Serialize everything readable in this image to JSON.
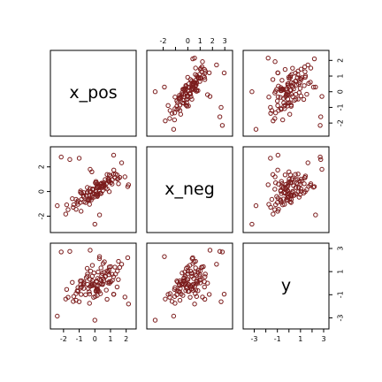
{
  "chart_data": {
    "type": "scatter",
    "title": "",
    "variables": [
      "x_pos",
      "x_neg",
      "y"
    ],
    "marker": {
      "shape": "open-circle",
      "color": "#7b1c1c"
    },
    "grid": false,
    "axis_ticks": {
      "x_pos": {
        "range": [
          -2.5,
          2.3
        ],
        "ticks": [
          -2,
          -1,
          0,
          1,
          2
        ],
        "labels": [
          "-2",
          "-1",
          "0",
          "1",
          "2"
        ]
      },
      "x_neg": {
        "range": [
          -2.9,
          3.2
        ],
        "ticks": [
          -2,
          0,
          2
        ],
        "labels": [
          "-2",
          "0",
          "2"
        ],
        "top_ticks": [
          -2,
          -1,
          0,
          1,
          2,
          3
        ],
        "top_labels": [
          "-2",
          "",
          "0",
          "1",
          "2",
          "3"
        ]
      },
      "y": {
        "range": [
          -3.5,
          3.0
        ],
        "ticks": [
          -2,
          -1,
          0,
          1,
          2
        ],
        "labels": [
          "-2",
          "-1",
          "0",
          "1",
          "2"
        ],
        "side_ticks": [
          -3,
          -1,
          1,
          3
        ],
        "side_labels": [
          "-3",
          "-1",
          "1",
          "3"
        ],
        "bottom_ticks": [
          -3,
          -2,
          -1,
          0,
          1,
          2,
          3
        ],
        "bottom_labels": [
          "-3",
          "",
          "-1",
          "",
          "1",
          "",
          "3"
        ]
      }
    },
    "points": [
      {
        "x_pos": -0.92,
        "x_neg": -0.07,
        "y": -0.43
      },
      {
        "x_pos": -0.34,
        "x_neg": -1.04,
        "y": -1.74
      },
      {
        "x_pos": 1.92,
        "x_neg": 1.19,
        "y": -1.2
      },
      {
        "x_pos": -0.91,
        "x_neg": 0.05,
        "y": -0.13
      },
      {
        "x_pos": -0.48,
        "x_neg": 0.33,
        "y": 0.6
      },
      {
        "x_pos": 0.21,
        "x_neg": -0.24,
        "y": 0.97
      },
      {
        "x_pos": 0.03,
        "x_neg": 0.71,
        "y": -1.15
      },
      {
        "x_pos": 0.92,
        "x_neg": 1.35,
        "y": 0.13
      },
      {
        "x_pos": -0.19,
        "x_neg": 1.6,
        "y": 0.0
      },
      {
        "x_pos": -0.85,
        "x_neg": -0.64,
        "y": 0.2
      },
      {
        "x_pos": -0.23,
        "x_neg": -0.68,
        "y": -0.22
      },
      {
        "x_pos": 0.18,
        "x_neg": 0.43,
        "y": -0.61
      },
      {
        "x_pos": 1.42,
        "x_neg": 1.35,
        "y": -0.33
      },
      {
        "x_pos": 0.53,
        "x_neg": 0.41,
        "y": 1.7
      },
      {
        "x_pos": -1.38,
        "x_neg": -1.28,
        "y": -1.58
      },
      {
        "x_pos": 0.41,
        "x_neg": 0.44,
        "y": -0.09
      },
      {
        "x_pos": 0.07,
        "x_neg": 0.82,
        "y": -0.65
      },
      {
        "x_pos": 1.71,
        "x_neg": 2.33,
        "y": 1.64
      },
      {
        "x_pos": -0.47,
        "x_neg": -0.7,
        "y": -0.1
      },
      {
        "x_pos": -0.17,
        "x_neg": -0.36,
        "y": 0.21
      },
      {
        "x_pos": -0.73,
        "x_neg": -0.32,
        "y": -0.12
      },
      {
        "x_pos": 0.69,
        "x_neg": 0.32,
        "y": 0.59
      },
      {
        "x_pos": 1.28,
        "x_neg": 1.12,
        "y": 1.39
      },
      {
        "x_pos": 1.01,
        "x_neg": 1.26,
        "y": 1.43
      },
      {
        "x_pos": 0.18,
        "x_neg": -0.33,
        "y": 0.41
      },
      {
        "x_pos": 0.5,
        "x_neg": 0.08,
        "y": -0.11
      },
      {
        "x_pos": 0.9,
        "x_neg": 0.98,
        "y": 0.73
      },
      {
        "x_pos": -0.7,
        "x_neg": -0.83,
        "y": 0.1
      },
      {
        "x_pos": -0.15,
        "x_neg": 0.21,
        "y": -0.22
      },
      {
        "x_pos": -1.86,
        "x_neg": -1.83,
        "y": -1.37
      },
      {
        "x_pos": 1.1,
        "x_neg": 0.61,
        "y": 0.77
      },
      {
        "x_pos": -0.03,
        "x_neg": -0.19,
        "y": -0.13
      },
      {
        "x_pos": -0.71,
        "x_neg": -0.44,
        "y": -0.01
      },
      {
        "x_pos": 0.61,
        "x_neg": 0.51,
        "y": 1.85
      },
      {
        "x_pos": -0.55,
        "x_neg": -0.3,
        "y": 0.47
      },
      {
        "x_pos": 0.84,
        "x_neg": 1.01,
        "y": 0.02
      },
      {
        "x_pos": 0.17,
        "x_neg": 0.28,
        "y": -0.5
      },
      {
        "x_pos": -0.31,
        "x_neg": 0.25,
        "y": -0.29
      },
      {
        "x_pos": 1.21,
        "x_neg": 1.74,
        "y": -0.97
      },
      {
        "x_pos": 1.59,
        "x_neg": 1.15,
        "y": 1.37
      },
      {
        "x_pos": -1.2,
        "x_neg": -1.44,
        "y": -0.9
      },
      {
        "x_pos": 0.92,
        "x_neg": -0.01,
        "y": 1.4
      },
      {
        "x_pos": -0.36,
        "x_neg": -0.67,
        "y": -0.74
      },
      {
        "x_pos": 0.51,
        "x_neg": 0.63,
        "y": -0.06
      },
      {
        "x_pos": -0.47,
        "x_neg": -0.03,
        "y": 0.8
      },
      {
        "x_pos": -0.93,
        "x_neg": -0.89,
        "y": 0.19
      },
      {
        "x_pos": 0.1,
        "x_neg": 0.58,
        "y": -0.26
      },
      {
        "x_pos": -0.06,
        "x_neg": -0.46,
        "y": 0.88
      },
      {
        "x_pos": 0.29,
        "x_neg": 0.35,
        "y": 2.12
      },
      {
        "x_pos": -0.85,
        "x_neg": -0.14,
        "y": -0.33
      },
      {
        "x_pos": -1.8,
        "x_neg": -1.08,
        "y": -0.54
      },
      {
        "x_pos": -0.27,
        "x_neg": 0.01,
        "y": 1.04
      },
      {
        "x_pos": 0.55,
        "x_neg": 0.47,
        "y": 0.4
      },
      {
        "x_pos": -0.16,
        "x_neg": 0.16,
        "y": 1.54
      },
      {
        "x_pos": 0.9,
        "x_neg": 0.87,
        "y": 1.13
      },
      {
        "x_pos": 0.15,
        "x_neg": -0.17,
        "y": -0.64
      },
      {
        "x_pos": -1.08,
        "x_neg": -1.04,
        "y": -0.38
      },
      {
        "x_pos": 0.86,
        "x_neg": 0.85,
        "y": 0.96
      },
      {
        "x_pos": 1.5,
        "x_neg": 1.06,
        "y": 0.31
      },
      {
        "x_pos": 0.78,
        "x_neg": 1.38,
        "y": -1.39
      },
      {
        "x_pos": -0.88,
        "x_neg": -1.6,
        "y": -0.97
      },
      {
        "x_pos": 0.12,
        "x_neg": 0.32,
        "y": -0.48
      },
      {
        "x_pos": -0.71,
        "x_neg": -0.09,
        "y": -0.45
      },
      {
        "x_pos": 0.43,
        "x_neg": 0.68,
        "y": 0.66
      },
      {
        "x_pos": 1.19,
        "x_neg": 1.39,
        "y": 0.56
      },
      {
        "x_pos": 0.11,
        "x_neg": 0.72,
        "y": 0.11
      },
      {
        "x_pos": -1.71,
        "x_neg": -1.47,
        "y": -1.22
      },
      {
        "x_pos": -0.16,
        "x_neg": -0.2,
        "y": 0.61
      },
      {
        "x_pos": 0.07,
        "x_neg": 0.03,
        "y": -0.71
      },
      {
        "x_pos": 0.58,
        "x_neg": 0.72,
        "y": 0.23
      },
      {
        "x_pos": -0.33,
        "x_neg": -0.54,
        "y": -0.94
      },
      {
        "x_pos": 0.39,
        "x_neg": 0.63,
        "y": 1.32
      },
      {
        "x_pos": -1.13,
        "x_neg": -0.88,
        "y": -0.67
      },
      {
        "x_pos": 0.3,
        "x_neg": 0.01,
        "y": 0.32
      },
      {
        "x_pos": 0.73,
        "x_neg": 0.64,
        "y": -0.6
      },
      {
        "x_pos": 1.51,
        "x_neg": 0.63,
        "y": 1.89
      },
      {
        "x_pos": 0.11,
        "x_neg": -0.29,
        "y": 0.18
      },
      {
        "x_pos": 0.66,
        "x_neg": 0.98,
        "y": 0.56
      },
      {
        "x_pos": 1.02,
        "x_neg": 0.73,
        "y": 0.13
      },
      {
        "x_pos": 0.4,
        "x_neg": -0.16,
        "y": 0.23
      },
      {
        "x_pos": 1.44,
        "x_neg": 1.01,
        "y": 1.05
      },
      {
        "x_pos": -0.59,
        "x_neg": -0.89,
        "y": -1.0
      },
      {
        "x_pos": 0.27,
        "x_neg": 0.1,
        "y": -0.71
      },
      {
        "x_pos": 0.93,
        "x_neg": 0.78,
        "y": -0.01
      },
      {
        "x_pos": -1.08,
        "x_neg": -0.75,
        "y": -0.7
      },
      {
        "x_pos": 0.78,
        "x_neg": 0.21,
        "y": 1.05
      },
      {
        "x_pos": -0.31,
        "x_neg": -0.04,
        "y": 0.32
      },
      {
        "x_pos": 0.48,
        "x_neg": 0.32,
        "y": 0.84
      },
      {
        "x_pos": -0.18,
        "x_neg": -0.5,
        "y": -0.13
      },
      {
        "x_pos": -1.44,
        "x_neg": -0.58,
        "y": 0.07
      },
      {
        "x_pos": -0.08,
        "x_neg": 0.19,
        "y": -1.22
      },
      {
        "x_pos": 0.59,
        "x_neg": 0.57,
        "y": 0.95
      },
      {
        "x_pos": 0.33,
        "x_neg": -0.14,
        "y": 0.0
      },
      {
        "x_pos": -0.42,
        "x_neg": -0.61,
        "y": -0.47
      },
      {
        "x_pos": -1.2,
        "x_neg": -0.64,
        "y": -1.48
      },
      {
        "x_pos": 0.2,
        "x_neg": 0.39,
        "y": -0.2
      },
      {
        "x_pos": -0.49,
        "x_neg": -0.12,
        "y": 1.28
      },
      {
        "x_pos": 1.12,
        "x_neg": 0.96,
        "y": 0.25
      },
      {
        "x_pos": 0.36,
        "x_neg": 0.6,
        "y": -0.91
      },
      {
        "x_pos": 0.16,
        "x_neg": -0.4,
        "y": -1.06
      },
      {
        "x_pos": 1.32,
        "x_neg": 1.42,
        "y": 0.79
      },
      {
        "x_pos": -1.35,
        "x_neg": -1.07,
        "y": -1.15
      },
      {
        "x_pos": -2.4,
        "x_neg": -1.15,
        "y": -2.85
      },
      {
        "x_pos": 0.0,
        "x_neg": -2.65,
        "y": -3.2
      },
      {
        "x_pos": -2.15,
        "x_neg": 2.8,
        "y": 2.7
      },
      {
        "x_pos": 2.1,
        "x_neg": 0.4,
        "y": 2.2
      },
      {
        "x_pos": 2.15,
        "x_neg": 0.55,
        "y": -1.8
      },
      {
        "x_pos": -1.6,
        "x_neg": 2.6,
        "y": 2.75
      },
      {
        "x_pos": 0.3,
        "x_neg": -1.9,
        "y": 2.3
      },
      {
        "x_pos": 1.2,
        "x_neg": 2.95,
        "y": -0.95
      },
      {
        "x_pos": -0.3,
        "x_neg": 1.8,
        "y": 2.85
      },
      {
        "x_pos": -1.0,
        "x_neg": 2.7,
        "y": -1.6
      }
    ]
  },
  "labels": {
    "diag_x_pos": "x_pos",
    "diag_x_neg": "x_neg",
    "diag_y": "y"
  }
}
